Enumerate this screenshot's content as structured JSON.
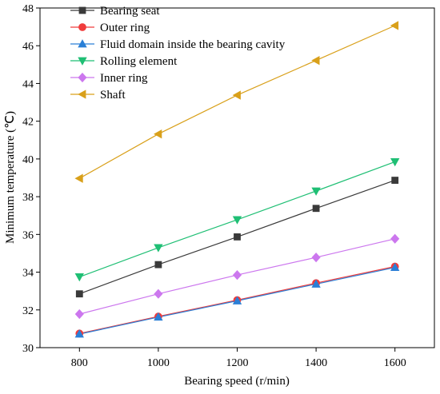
{
  "chart_data": {
    "type": "line",
    "title": "",
    "xlabel": "Bearing speed (r/min)",
    "ylabel": "Minimum temperature (℃)",
    "x": [
      800,
      1000,
      1200,
      1400,
      1600
    ],
    "xlim": [
      700,
      1700
    ],
    "ylim": [
      30,
      48
    ],
    "xticks": [
      800,
      1000,
      1200,
      1400,
      1600
    ],
    "yticks": [
      30,
      32,
      34,
      36,
      38,
      40,
      42,
      44,
      46,
      48
    ],
    "grid": false,
    "legend_position": "top-left",
    "series": [
      {
        "name": "Bearing seat",
        "color": "#3a3a3a",
        "marker": "square",
        "values": [
          32.85,
          34.4,
          35.87,
          37.38,
          38.87
        ]
      },
      {
        "name": "Outer ring",
        "color": "#f03c3c",
        "marker": "circle",
        "values": [
          30.75,
          31.65,
          32.52,
          33.42,
          34.3
        ]
      },
      {
        "name": "Fluid domain inside the bearing cavity",
        "color": "#2a7fd6",
        "marker": "triangle-up",
        "values": [
          30.72,
          31.62,
          32.48,
          33.37,
          34.25
        ]
      },
      {
        "name": "Rolling element",
        "color": "#1fbf74",
        "marker": "triangle-down",
        "values": [
          33.75,
          35.3,
          36.78,
          38.3,
          39.85
        ]
      },
      {
        "name": "Inner ring",
        "color": "#cc77ee",
        "marker": "diamond",
        "values": [
          31.78,
          32.85,
          33.85,
          34.78,
          35.77
        ]
      },
      {
        "name": "Shaft",
        "color": "#d9a01a",
        "marker": "triangle-left",
        "values": [
          38.97,
          41.32,
          43.38,
          45.22,
          47.07
        ]
      }
    ]
  }
}
